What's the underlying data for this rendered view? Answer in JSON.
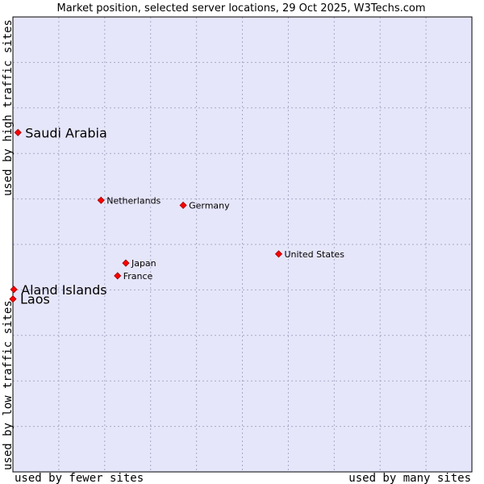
{
  "chart_data": {
    "type": "scatter",
    "title": "Market position, selected server locations, 29 Oct 2025, W3Techs.com",
    "xlabel_left": "used by fewer sites",
    "xlabel_right": "used by many sites",
    "ylabel_bottom": "used by low traffic sites",
    "ylabel_top": "used by high traffic sites",
    "xlim": [
      0,
      100
    ],
    "ylim": [
      0,
      100
    ],
    "grid": true,
    "colors": {
      "plot_bg": "#e6e6fa",
      "point": "#ff0000",
      "point_edge": "#990000",
      "border": "#000000"
    },
    "points": [
      {
        "label": "Saudi Arabia",
        "x": 1.1,
        "y": 74.6,
        "size": "large"
      },
      {
        "label": "Netherlands",
        "x": 19.2,
        "y": 59.7,
        "size": "small"
      },
      {
        "label": "Germany",
        "x": 37.1,
        "y": 58.6,
        "size": "small"
      },
      {
        "label": "United States",
        "x": 57.9,
        "y": 47.9,
        "size": "small"
      },
      {
        "label": "Japan",
        "x": 24.6,
        "y": 45.9,
        "size": "small"
      },
      {
        "label": "France",
        "x": 22.8,
        "y": 43.1,
        "size": "small"
      },
      {
        "label": "Aland Islands",
        "x": 0.2,
        "y": 40.1,
        "size": "large"
      },
      {
        "label": "Laos",
        "x": 0.0,
        "y": 38.0,
        "size": "large"
      }
    ]
  }
}
